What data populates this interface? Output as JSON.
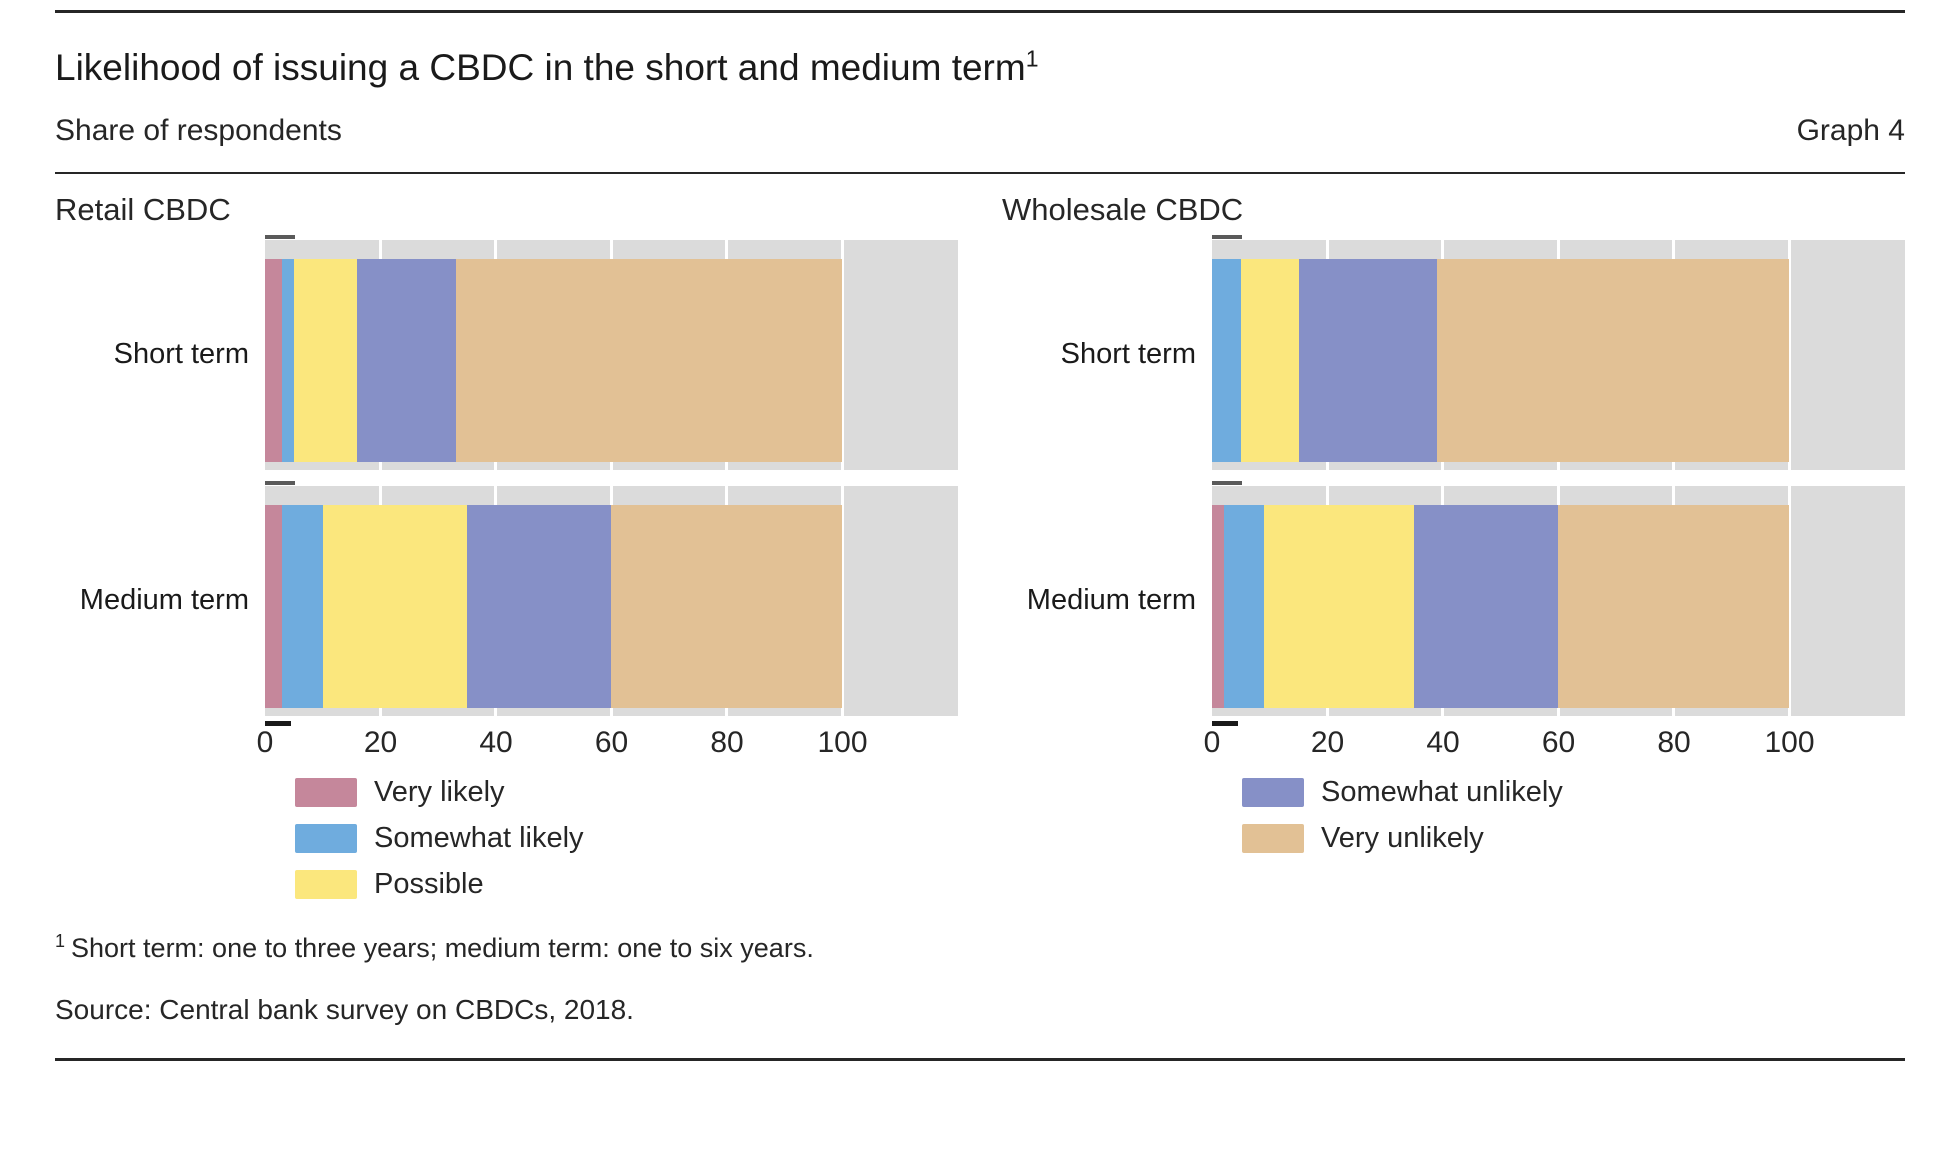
{
  "header": {
    "title": "Likelihood of issuing a CBDC in the short and medium term",
    "title_superscript": "1",
    "subtitle": "Share of respondents",
    "graph_label": "Graph 4"
  },
  "colors": {
    "very_likely": "#C5879B",
    "somewhat_likely": "#6FACDE",
    "possible": "#FBE77D",
    "somewhat_unlikely": "#8690C7",
    "very_unlikely": "#E2C195",
    "plot_background": "#DBDBDB",
    "gridline": "#FFFFFF",
    "text": "#262626"
  },
  "chart_data": [
    {
      "type": "bar",
      "orientation": "horizontal",
      "stacked": true,
      "title": "Retail CBDC",
      "categories": [
        "Short term",
        "Medium term"
      ],
      "series": [
        {
          "name": "Very likely",
          "color_key": "very_likely",
          "values": [
            3,
            3
          ]
        },
        {
          "name": "Somewhat likely",
          "color_key": "somewhat_likely",
          "values": [
            2,
            7
          ]
        },
        {
          "name": "Possible",
          "color_key": "possible",
          "values": [
            11,
            25
          ]
        },
        {
          "name": "Somewhat unlikely",
          "color_key": "somewhat_unlikely",
          "values": [
            17,
            25
          ]
        },
        {
          "name": "Very unlikely",
          "color_key": "very_unlikely",
          "values": [
            67,
            40
          ]
        }
      ],
      "xlim": [
        0,
        120
      ],
      "xticks": [
        0,
        20,
        40,
        60,
        80,
        100
      ],
      "grid": true,
      "legend_position": "below-left",
      "legend": [
        "Very likely",
        "Somewhat likely",
        "Possible"
      ]
    },
    {
      "type": "bar",
      "orientation": "horizontal",
      "stacked": true,
      "title": "Wholesale CBDC",
      "categories": [
        "Short term",
        "Medium term"
      ],
      "series": [
        {
          "name": "Very likely",
          "color_key": "very_likely",
          "values": [
            0,
            2
          ]
        },
        {
          "name": "Somewhat likely",
          "color_key": "somewhat_likely",
          "values": [
            5,
            7
          ]
        },
        {
          "name": "Possible",
          "color_key": "possible",
          "values": [
            10,
            26
          ]
        },
        {
          "name": "Somewhat unlikely",
          "color_key": "somewhat_unlikely",
          "values": [
            24,
            25
          ]
        },
        {
          "name": "Very unlikely",
          "color_key": "very_unlikely",
          "values": [
            61,
            40
          ]
        }
      ],
      "xlim": [
        0,
        120
      ],
      "xticks": [
        0,
        20,
        40,
        60,
        80,
        100
      ],
      "grid": true,
      "legend_position": "below-left",
      "legend": [
        "Somewhat unlikely",
        "Very unlikely"
      ]
    }
  ],
  "footnote": {
    "marker": "1",
    "text": "Short term: one to three years; medium term: one to six years."
  },
  "source": "Source: Central bank survey on CBDCs, 2018."
}
